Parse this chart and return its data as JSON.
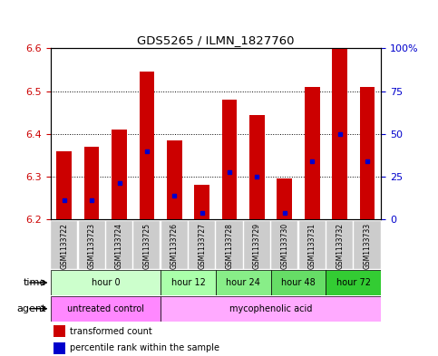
{
  "title": "GDS5265 / ILMN_1827760",
  "samples": [
    "GSM1133722",
    "GSM1133723",
    "GSM1133724",
    "GSM1133725",
    "GSM1133726",
    "GSM1133727",
    "GSM1133728",
    "GSM1133729",
    "GSM1133730",
    "GSM1133731",
    "GSM1133732",
    "GSM1133733"
  ],
  "bar_values": [
    6.36,
    6.37,
    6.41,
    6.545,
    6.385,
    6.28,
    6.48,
    6.445,
    6.295,
    6.51,
    6.6,
    6.51
  ],
  "bar_base": 6.2,
  "percentile_values": [
    6.245,
    6.245,
    6.285,
    6.36,
    6.255,
    6.215,
    6.31,
    6.3,
    6.215,
    6.335,
    6.4,
    6.335
  ],
  "ylim_left": [
    6.2,
    6.6
  ],
  "ylim_right": [
    0,
    100
  ],
  "yticks_left": [
    6.2,
    6.3,
    6.4,
    6.5,
    6.6
  ],
  "yticks_right": [
    0,
    25,
    50,
    75,
    100
  ],
  "ytick_labels_right": [
    "0",
    "25",
    "50",
    "75",
    "100%"
  ],
  "bar_color": "#cc0000",
  "percentile_color": "#0000cc",
  "time_groups": [
    {
      "label": "hour 0",
      "start": 0,
      "end": 4,
      "color": "#ccffcc"
    },
    {
      "label": "hour 12",
      "start": 4,
      "end": 6,
      "color": "#aaffaa"
    },
    {
      "label": "hour 24",
      "start": 6,
      "end": 8,
      "color": "#88ee88"
    },
    {
      "label": "hour 48",
      "start": 8,
      "end": 10,
      "color": "#66dd66"
    },
    {
      "label": "hour 72",
      "start": 10,
      "end": 12,
      "color": "#33cc33"
    }
  ],
  "agent_groups": [
    {
      "label": "untreated control",
      "start": 0,
      "end": 4,
      "color": "#ff88ff"
    },
    {
      "label": "mycophenolic acid",
      "start": 4,
      "end": 12,
      "color": "#ffaaff"
    }
  ],
  "sample_bg_color": "#cccccc",
  "left_tick_color": "#cc0000",
  "right_tick_color": "#0000cc",
  "bar_width": 0.55
}
